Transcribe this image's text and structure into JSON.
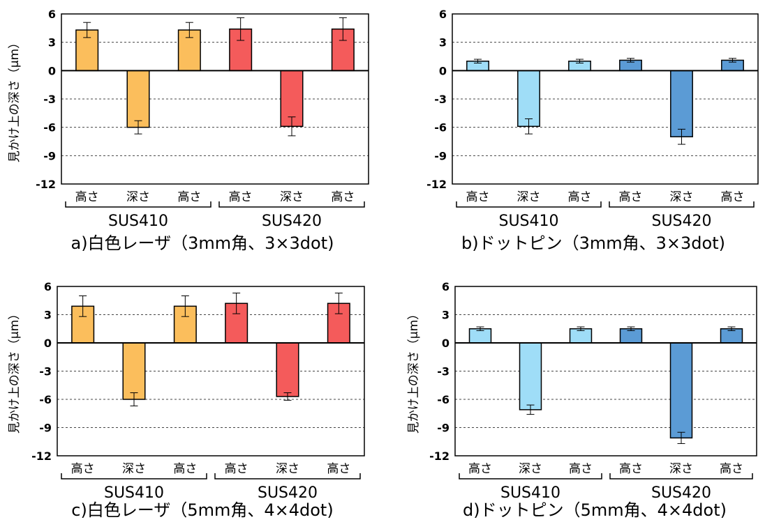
{
  "chart_data": [
    {
      "type": "bar",
      "caption": "a)白色レーザ（3mm角、3×3dot)",
      "ylabel": "見かけ上の深さ（μm）",
      "ylim": [
        -12,
        6
      ],
      "yticks": [
        6,
        3,
        0,
        -3,
        -6,
        -9,
        -12
      ],
      "grid": true,
      "categories": [
        "高さ",
        "深さ",
        "高さ",
        "高さ",
        "深さ",
        "高さ"
      ],
      "groups": [
        "SUS410",
        "SUS420"
      ],
      "values": [
        4.3,
        -6.0,
        4.3,
        4.4,
        -5.9,
        4.4
      ],
      "errors": [
        0.8,
        0.7,
        0.8,
        1.2,
        1.0,
        1.2
      ],
      "colors": [
        "#FBBE5C",
        "#FBBE5C",
        "#FBBE5C",
        "#F45B5B",
        "#F45B5B",
        "#F45B5B"
      ]
    },
    {
      "type": "bar",
      "caption": "b)ドットピン（3mm角、3×3dot)",
      "ylabel": "",
      "ylim": [
        -12,
        6
      ],
      "yticks": [
        6,
        3,
        0,
        -3,
        -6,
        -9,
        -12
      ],
      "grid": true,
      "categories": [
        "高さ",
        "深さ",
        "高さ",
        "高さ",
        "深さ",
        "高さ"
      ],
      "groups": [
        "SUS410",
        "SUS420"
      ],
      "values": [
        1.0,
        -5.9,
        1.0,
        1.1,
        -7.0,
        1.1
      ],
      "errors": [
        0.2,
        0.8,
        0.2,
        0.2,
        0.8,
        0.2
      ],
      "colors": [
        "#9FDDF7",
        "#9FDDF7",
        "#9FDDF7",
        "#5B9BD5",
        "#5B9BD5",
        "#5B9BD5"
      ]
    },
    {
      "type": "bar",
      "caption": "c)白色レーザ（5mm角、4×4dot)",
      "ylabel": "見かけ上の深さ（μm）",
      "ylim": [
        -12,
        6
      ],
      "yticks": [
        6,
        3,
        0,
        -3,
        -6,
        -9,
        -12
      ],
      "grid": true,
      "categories": [
        "高さ",
        "深さ",
        "高さ",
        "高さ",
        "深さ",
        "高さ"
      ],
      "groups": [
        "SUS410",
        "SUS420"
      ],
      "values": [
        3.9,
        -6.0,
        3.9,
        4.2,
        -5.7,
        4.2
      ],
      "errors": [
        1.1,
        0.7,
        1.1,
        1.1,
        0.4,
        1.1
      ],
      "colors": [
        "#FBBE5C",
        "#FBBE5C",
        "#FBBE5C",
        "#F45B5B",
        "#F45B5B",
        "#F45B5B"
      ]
    },
    {
      "type": "bar",
      "caption": "d)ドットピン（5mm角、4×4dot)",
      "ylabel": "見かけ上の深さ（μm）",
      "ylim": [
        -12,
        6
      ],
      "yticks": [
        6,
        3,
        0,
        -3,
        -6,
        -9,
        -12
      ],
      "grid": true,
      "categories": [
        "高さ",
        "深さ",
        "高さ",
        "高さ",
        "深さ",
        "高さ"
      ],
      "groups": [
        "SUS410",
        "SUS420"
      ],
      "values": [
        1.5,
        -7.1,
        1.5,
        1.5,
        -10.1,
        1.5
      ],
      "errors": [
        0.2,
        0.5,
        0.2,
        0.2,
        0.6,
        0.2
      ],
      "colors": [
        "#9FDDF7",
        "#9FDDF7",
        "#9FDDF7",
        "#5B9BD5",
        "#5B9BD5",
        "#5B9BD5"
      ]
    }
  ]
}
